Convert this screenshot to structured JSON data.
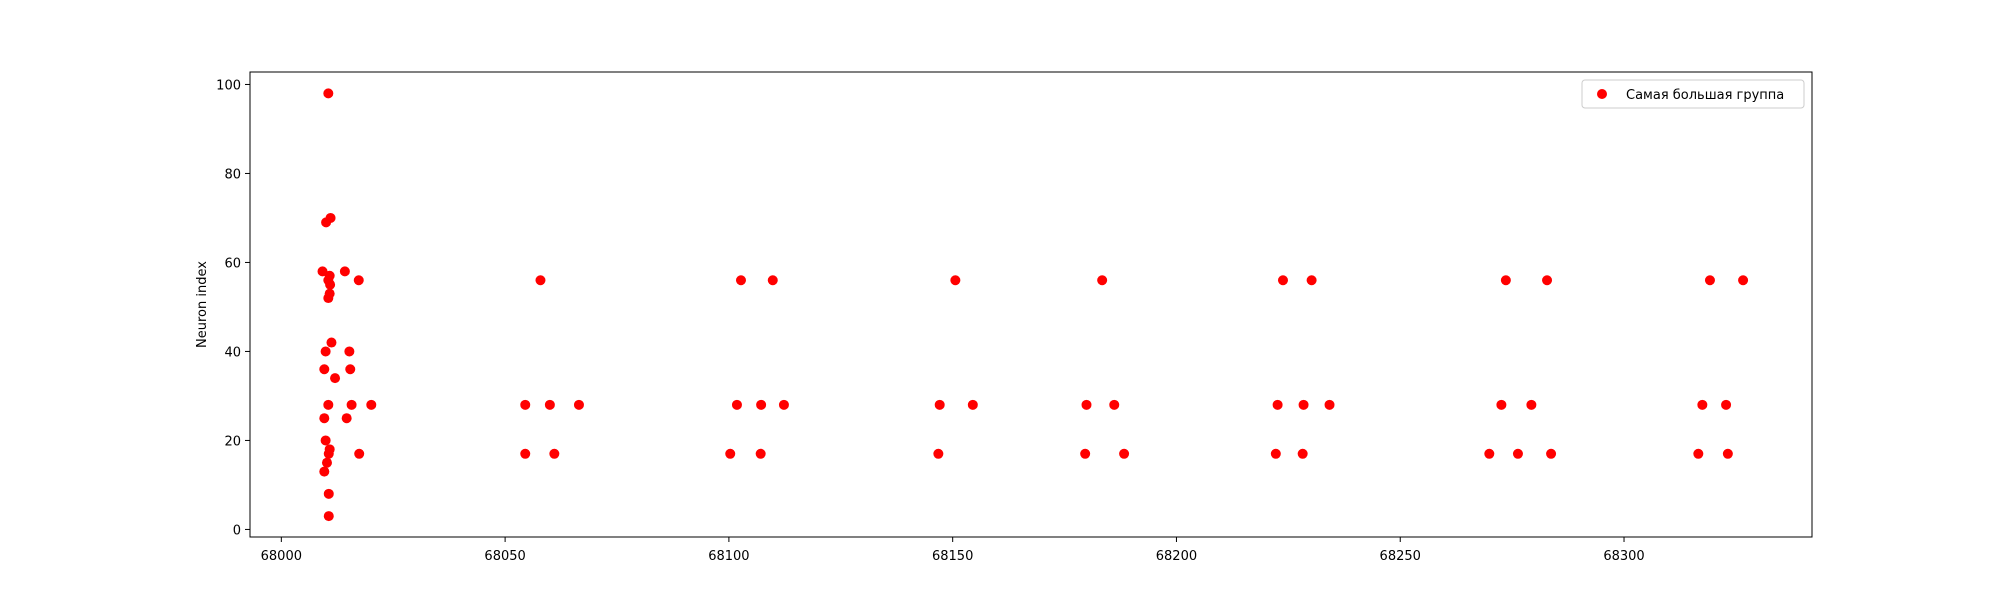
{
  "chart_data": {
    "type": "scatter",
    "title": "",
    "xlabel": "",
    "ylabel": "Neuron index",
    "xlim": [
      67993,
      68342
    ],
    "ylim": [
      -1.7,
      102.8
    ],
    "xticks": [
      68000,
      68050,
      68100,
      68150,
      68200,
      68250,
      68300
    ],
    "yticks": [
      0,
      20,
      40,
      60,
      80,
      100
    ],
    "grid": false,
    "legend_position": "top-right",
    "series": [
      {
        "name": "Самая большая группа",
        "color": "#ff0000",
        "points": [
          [
            68010.5,
            98
          ],
          [
            68010.0,
            69
          ],
          [
            68011.0,
            70
          ],
          [
            68009.2,
            58
          ],
          [
            68014.2,
            58
          ],
          [
            68010.8,
            57
          ],
          [
            68010.5,
            56
          ],
          [
            68010.9,
            55
          ],
          [
            68017.3,
            56
          ],
          [
            68010.8,
            53
          ],
          [
            68010.5,
            52
          ],
          [
            68011.2,
            42
          ],
          [
            68009.9,
            40
          ],
          [
            68015.2,
            40
          ],
          [
            68009.6,
            36
          ],
          [
            68015.4,
            36
          ],
          [
            68012.0,
            34
          ],
          [
            68010.5,
            28
          ],
          [
            68015.7,
            28
          ],
          [
            68020.1,
            28
          ],
          [
            68009.6,
            25
          ],
          [
            68014.6,
            25
          ],
          [
            68009.9,
            20
          ],
          [
            68010.8,
            18
          ],
          [
            68010.6,
            17
          ],
          [
            68017.4,
            17
          ],
          [
            68010.2,
            15
          ],
          [
            68009.6,
            13
          ],
          [
            68010.6,
            8
          ],
          [
            68010.6,
            3
          ],
          [
            68057.9,
            56
          ],
          [
            68054.5,
            28
          ],
          [
            68060.0,
            28
          ],
          [
            68066.5,
            28
          ],
          [
            68054.5,
            17
          ],
          [
            68061.0,
            17
          ],
          [
            68102.7,
            56
          ],
          [
            68109.8,
            56
          ],
          [
            68101.8,
            28
          ],
          [
            68107.2,
            28
          ],
          [
            68112.3,
            28
          ],
          [
            68100.3,
            17
          ],
          [
            68107.1,
            17
          ],
          [
            68150.6,
            56
          ],
          [
            68147.1,
            28
          ],
          [
            68154.5,
            28
          ],
          [
            68146.8,
            17
          ],
          [
            68183.4,
            56
          ],
          [
            68179.9,
            28
          ],
          [
            68186.1,
            28
          ],
          [
            68179.6,
            17
          ],
          [
            68188.3,
            17
          ],
          [
            68223.8,
            56
          ],
          [
            68230.2,
            56
          ],
          [
            68222.6,
            28
          ],
          [
            68228.4,
            28
          ],
          [
            68234.2,
            28
          ],
          [
            68222.2,
            17
          ],
          [
            68228.2,
            17
          ],
          [
            68273.6,
            56
          ],
          [
            68282.8,
            56
          ],
          [
            68272.6,
            28
          ],
          [
            68279.3,
            28
          ],
          [
            68269.9,
            17
          ],
          [
            68276.3,
            17
          ],
          [
            68283.7,
            17
          ],
          [
            68319.2,
            56
          ],
          [
            68326.6,
            56
          ],
          [
            68317.5,
            28
          ],
          [
            68322.8,
            28
          ],
          [
            68316.6,
            17
          ],
          [
            68323.2,
            17
          ]
        ]
      }
    ]
  }
}
